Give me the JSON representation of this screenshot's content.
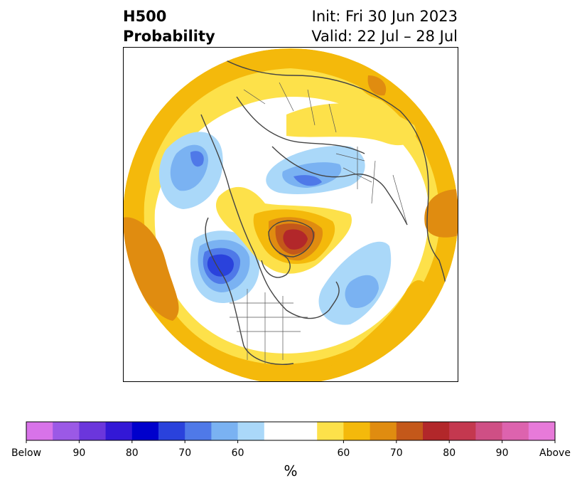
{
  "header": {
    "title_line1": "H500",
    "title_line2": "Probability",
    "init": "Init: Fri 30 Jun 2023",
    "valid": "Valid: 22 Jul – 28 Jul"
  },
  "colorbar": {
    "colors": [
      "#d873e9",
      "#9b59e6",
      "#6b36dc",
      "#3318d6",
      "#0000cc",
      "#2a42dc",
      "#4f79e8",
      "#7ab2f2",
      "#aad8f9",
      "#ffffff",
      "#ffffff",
      "#fde14a",
      "#f4b90b",
      "#e08c10",
      "#c4581a",
      "#b2272a",
      "#c4384f",
      "#cf4f85",
      "#dd63ae",
      "#e77ad9"
    ],
    "tick_labels": [
      "Below",
      "90",
      "80",
      "70",
      "60",
      "60",
      "70",
      "80",
      "90",
      "Above"
    ],
    "unit": "%"
  },
  "map": {
    "colors": {
      "yellow": "#fde14a",
      "gold": "#f4b90b",
      "orange": "#e08c10",
      "brown": "#c4581a",
      "red": "#b2272a",
      "light_blue": "#aad8f9",
      "mid_blue": "#7ab2f2",
      "blue": "#4f79e8",
      "deep_blue": "#2a42dc",
      "land_border": "#444444"
    }
  }
}
